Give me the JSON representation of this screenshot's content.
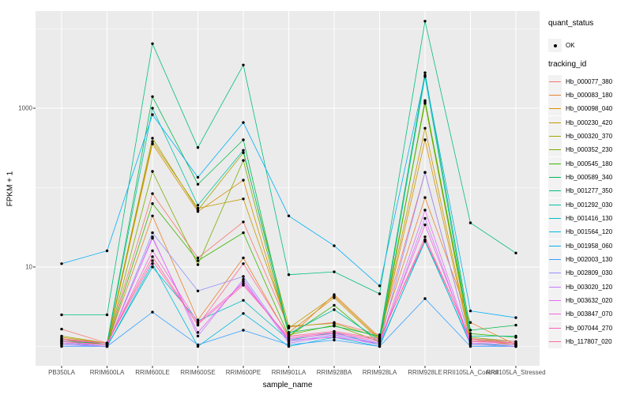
{
  "figure": {
    "background": "#FFFFFF",
    "panel_background": "#EBEBEB",
    "grid_color": "#FFFFFF",
    "tick_color": "#333333",
    "axis_text_color": "#4D4D4D",
    "point_color": "#000000"
  },
  "legend": {
    "quant_status": {
      "title": "quant_status",
      "items": [
        {
          "label": "OK",
          "glyph": "point"
        }
      ]
    },
    "tracking_id_title": "tracking_id"
  },
  "chart_data": {
    "type": "line",
    "title": "",
    "xlabel": "sample_name",
    "ylabel": "FPKM + 1",
    "y_scale": "log10",
    "ylim": [
      0.55,
      17000
    ],
    "y_major_breaks": [
      10,
      1000
    ],
    "y_major_labels": [
      "10",
      "1000"
    ],
    "y_minor_breaks": [
      1,
      100,
      10000
    ],
    "grid": true,
    "legend_position": "right",
    "point_marker": {
      "shape": "circle",
      "color": "#000000",
      "legend_label": "OK"
    },
    "categories": [
      "PB350LA",
      "RRIM600LA",
      "RRIM600LE",
      "RRIM600SE",
      "RRIM600PE",
      "RRIM901LA",
      "RRIM928BA",
      "RRIM928LA",
      "RRIM928LE",
      "RRII105LA_Control",
      "RRII105LA_Stressed"
    ],
    "series": [
      {
        "name": "Hb_000077_380",
        "color": "#F8766D",
        "values": [
          1.65,
          1.1,
          84,
          13,
          37,
          1.75,
          2,
          1.4,
          156,
          1.1,
          1.05
        ]
      },
      {
        "name": "Hb_000083_180",
        "color": "#EA8331",
        "values": [
          1.2,
          1.05,
          44,
          2.15,
          13,
          1.3,
          4.5,
          1.3,
          75,
          2,
          1.05
        ]
      },
      {
        "name": "Hb_000098_040",
        "color": "#D89000",
        "values": [
          1.15,
          1.05,
          355,
          50,
          124,
          1.5,
          4.1,
          1.2,
          400,
          1.15,
          1.1
        ]
      },
      {
        "name": "Hb_000230_420",
        "color": "#C49A00",
        "values": [
          1.3,
          1.1,
          380,
          55,
          72,
          1.7,
          4.3,
          1.25,
          560,
          1.2,
          1.05
        ]
      },
      {
        "name": "Hb_000320_370",
        "color": "#A3A500",
        "values": [
          1.35,
          1.1,
          420,
          52,
          275,
          1.8,
          1.95,
          1.3,
          1150,
          1.25,
          1.1
        ]
      },
      {
        "name": "Hb_000352_230",
        "color": "#7CAE00",
        "values": [
          1.25,
          1.05,
          160,
          10.7,
          220,
          1.4,
          1.85,
          1.15,
          1200,
          1.3,
          1.15
        ]
      },
      {
        "name": "Hb_000545_180",
        "color": "#39B600",
        "values": [
          1.1,
          1.05,
          63,
          12,
          27,
          1.35,
          3.3,
          1.1,
          1250,
          1.45,
          1.3
        ]
      },
      {
        "name": "Hb_000589_340",
        "color": "#00BB4E",
        "values": [
          1.15,
          1.1,
          1400,
          110,
          400,
          1.5,
          1.8,
          1.35,
          2800,
          1.6,
          1.85
        ]
      },
      {
        "name": "Hb_001277_350",
        "color": "#00BF7D",
        "values": [
          2.5,
          2.5,
          6500,
          320,
          3500,
          8,
          8.7,
          4.6,
          12500,
          36,
          15
        ]
      },
      {
        "name": "Hb_001292_030",
        "color": "#00C1A3",
        "values": [
          1.2,
          1.1,
          1000,
          60,
          295,
          1.45,
          2.9,
          1.2,
          2500,
          1.35,
          1.35
        ]
      },
      {
        "name": "Hb_001416_130",
        "color": "#00BFC4",
        "values": [
          1.1,
          1,
          10,
          2.1,
          3.8,
          1.2,
          1.5,
          1.05,
          21,
          1.1,
          1
        ]
      },
      {
        "name": "Hb_001564_120",
        "color": "#00BAE0",
        "values": [
          1.05,
          1,
          11,
          1,
          2.6,
          1,
          1.3,
          1,
          22,
          1.05,
          1
        ]
      },
      {
        "name": "Hb_001958_060",
        "color": "#00B0F6",
        "values": [
          11,
          16,
          830,
          135,
          660,
          44,
          18.5,
          5.8,
          2600,
          2.8,
          2.3
        ]
      },
      {
        "name": "Hb_002003_130",
        "color": "#35A2FF",
        "values": [
          1,
          1,
          2.7,
          1.05,
          1.6,
          1.05,
          1.2,
          1,
          4,
          1,
          1
        ]
      },
      {
        "name": "Hb_002809_030",
        "color": "#9590FF",
        "values": [
          1.1,
          1,
          27,
          5,
          7.6,
          1.15,
          1.4,
          1.1,
          155,
          1.1,
          1.05
        ]
      },
      {
        "name": "Hb_003020_120",
        "color": "#C77CFF",
        "values": [
          1.05,
          1,
          24,
          1.35,
          7,
          1.1,
          1.35,
          1.05,
          41,
          1.05,
          1
        ]
      },
      {
        "name": "Hb_003632_020",
        "color": "#E76BF3",
        "values": [
          1.1,
          1.05,
          23,
          1.5,
          6.6,
          1.2,
          1.3,
          1.1,
          52,
          1.1,
          1.05
        ]
      },
      {
        "name": "Hb_003847_070",
        "color": "#FA62DB",
        "values": [
          1.15,
          1.05,
          16,
          2,
          6.2,
          1.25,
          1.45,
          1.15,
          34,
          1.15,
          1.1
        ]
      },
      {
        "name": "Hb_007044_270",
        "color": "#FF62BC",
        "values": [
          1.2,
          1.1,
          12,
          1.9,
          5.9,
          1.3,
          1.5,
          1.2,
          24,
          1.2,
          1.1
        ]
      },
      {
        "name": "Hb_117807_020",
        "color": "#FF6A98",
        "values": [
          1.25,
          1.1,
          13.5,
          1.85,
          11,
          1.35,
          1.55,
          1.25,
          22,
          1.25,
          1.15
        ]
      }
    ]
  }
}
